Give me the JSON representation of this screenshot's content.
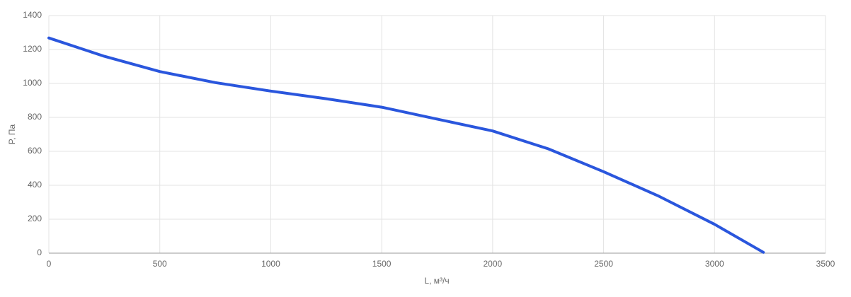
{
  "chart_data": {
    "type": "line",
    "x_label": "L, м³/ч",
    "y_label": "P, Па",
    "x": [
      0,
      250,
      500,
      750,
      1000,
      1250,
      1500,
      1750,
      2000,
      2250,
      2500,
      2750,
      3000,
      3220
    ],
    "series": [
      {
        "color": "#2a56dd",
        "values": [
          1268,
          1160,
          1070,
          1005,
          955,
          910,
          860,
          790,
          720,
          615,
          480,
          335,
          170,
          5
        ]
      }
    ],
    "xlim": [
      0,
      3500
    ],
    "xticks": [
      0,
      500,
      1000,
      1500,
      2000,
      2500,
      3000,
      3500
    ],
    "ylim": [
      0,
      1400
    ],
    "yticks": [
      0,
      200,
      400,
      600,
      800,
      1000,
      1200,
      1400
    ],
    "grid": true
  }
}
